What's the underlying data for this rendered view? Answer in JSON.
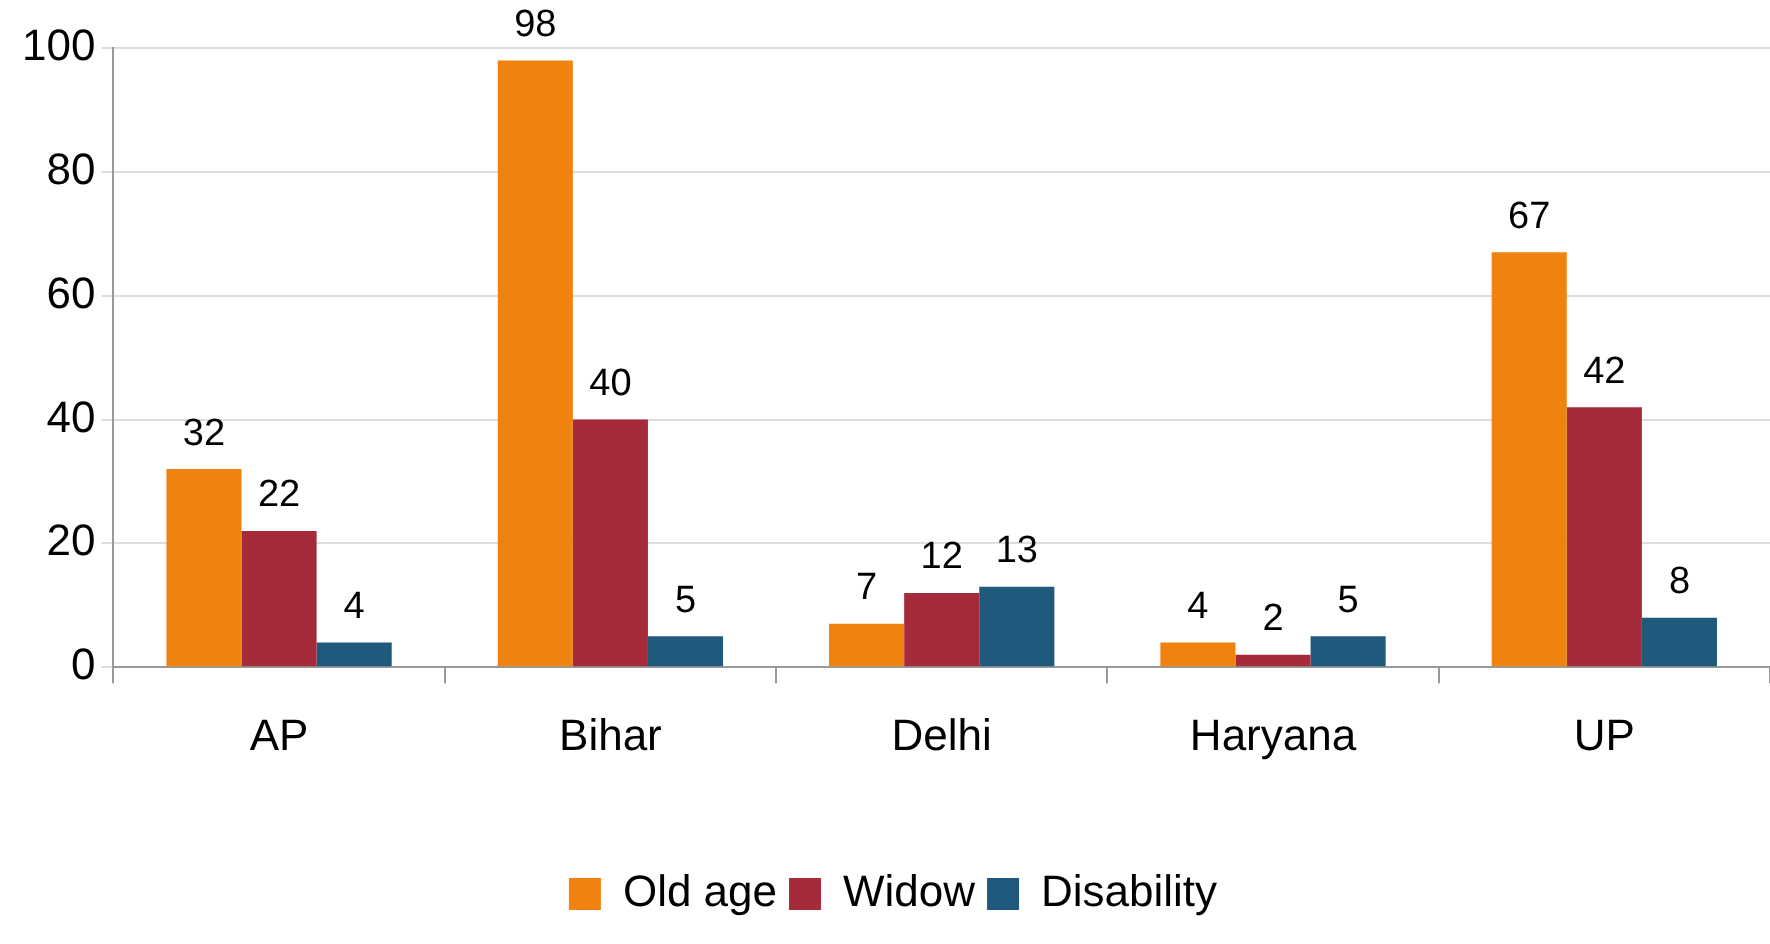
{
  "chart_data": {
    "type": "bar",
    "categories": [
      "AP",
      "Bihar",
      "Delhi",
      "Haryana",
      "UP"
    ],
    "series": [
      {
        "name": "Old age",
        "color": "#f0820f",
        "values": [
          32,
          98,
          7,
          4,
          67
        ]
      },
      {
        "name": "Widow",
        "color": "#a52a3a",
        "values": [
          22,
          40,
          12,
          2,
          42
        ]
      },
      {
        "name": "Disability",
        "color": "#1f5a7d",
        "values": [
          4,
          5,
          13,
          5,
          8
        ]
      }
    ],
    "ylim": [
      0,
      100
    ],
    "yticks": [
      0,
      20,
      40,
      60,
      80,
      100
    ],
    "grid": "y",
    "legend": "bottom",
    "data_labels": true
  }
}
